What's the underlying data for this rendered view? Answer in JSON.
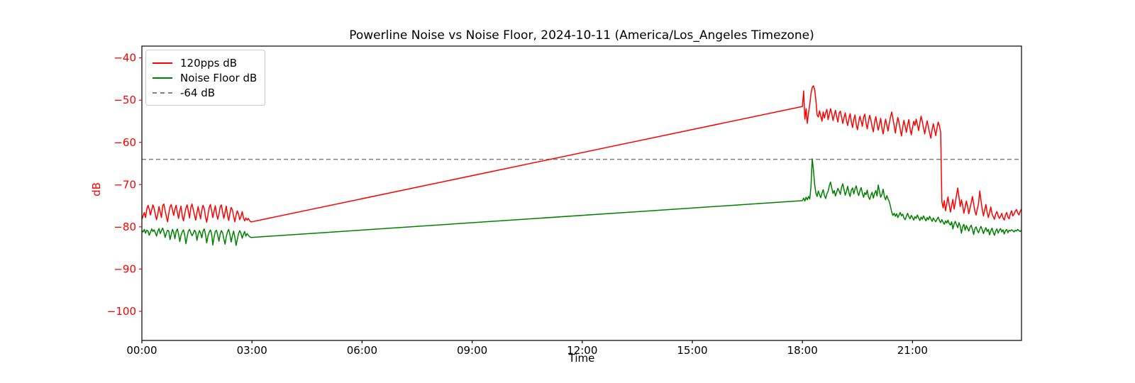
{
  "chart_data": {
    "type": "line",
    "title": "Powerline Noise vs Noise Floor, 2024-10-11 (America/Los_Angeles Timezone)",
    "xlabel": "Time",
    "ylabel": "dB",
    "date": "2024-10-11",
    "timezone": "America/Los_Angeles",
    "grid": false,
    "legend_position": "upper-left",
    "xlim_hours": [
      0,
      23.97
    ],
    "ylim": [
      -106.9,
      -37.2
    ],
    "x_axis_color": "#000000",
    "y_axis_color": "#ff0000",
    "x_ticks": [
      {
        "t": 0,
        "label": "00:00"
      },
      {
        "t": 3,
        "label": "03:00"
      },
      {
        "t": 6,
        "label": "06:00"
      },
      {
        "t": 9,
        "label": "09:00"
      },
      {
        "t": 12,
        "label": "12:00"
      },
      {
        "t": 15,
        "label": "15:00"
      },
      {
        "t": 18,
        "label": "18:00"
      },
      {
        "t": 21,
        "label": "21:00"
      }
    ],
    "y_ticks": [
      {
        "v": -40,
        "label": "−40"
      },
      {
        "v": -50,
        "label": "−50"
      },
      {
        "v": -60,
        "label": "−60"
      },
      {
        "v": -70,
        "label": "−70"
      },
      {
        "v": -80,
        "label": "−80"
      },
      {
        "v": -90,
        "label": "−90"
      },
      {
        "v": -100,
        "label": "−100"
      }
    ],
    "legend": {
      "entries": [
        {
          "label": "120pps dB",
          "color": "#ff0000",
          "dash": "solid"
        },
        {
          "label": "Noise Floor dB",
          "color": "#008000",
          "dash": "solid"
        },
        {
          "label": "-64 dB",
          "color": "#808080",
          "dash": "dashed"
        }
      ]
    },
    "reference_line": {
      "value": -64,
      "color": "#808080",
      "style": "dashed"
    },
    "series": [
      {
        "name": "120pps dB",
        "slug": "120pps-db",
        "color": "#ff0000",
        "segments": [
          {
            "t0": 0,
            "dt_min": 2,
            "values": [
              -78.2,
              -77.4,
              -76.6,
              -77.8,
              -75.9,
              -74.9,
              -75.8,
              -77.2,
              -76.0,
              -74.8,
              -75.6,
              -77.1,
              -78.3,
              -77.0,
              -75.2,
              -76.5,
              -77.8,
              -75.0,
              -74.6,
              -76.2,
              -77.5,
              -78.8,
              -76.9,
              -75.3,
              -74.7,
              -76.0,
              -77.3,
              -75.8,
              -74.9,
              -76.6,
              -78.0,
              -76.2,
              -75.1,
              -77.4,
              -78.6,
              -77.0,
              -75.6,
              -74.8,
              -76.3,
              -77.9,
              -75.4,
              -74.6,
              -75.9,
              -77.2,
              -78.4,
              -76.7,
              -75.2,
              -76.8,
              -78.1,
              -76.0,
              -74.9,
              -75.7,
              -77.6,
              -78.9,
              -77.2,
              -75.5,
              -74.7,
              -76.1,
              -77.8,
              -76.4,
              -75.0,
              -76.9,
              -78.2,
              -77.0,
              -75.3,
              -74.8,
              -76.5,
              -78.0,
              -76.6,
              -75.1,
              -77.2,
              -78.5,
              -76.8,
              -75.4,
              -76.0,
              -77.5,
              -78.8,
              -77.3,
              -76.2,
              -77.0,
              -78.3,
              -77.6,
              -76.4,
              -77.8,
              -78.6,
              -77.9,
              -78.4,
              -78.0,
              -78.5,
              -78.8
            ]
          },
          {
            "points": [
              [
                3.0,
                -78.8
              ],
              [
                18.0,
                -51.5
              ]
            ]
          },
          {
            "t0": 18,
            "dt_min": 2,
            "values": [
              -51.5,
              -47.8,
              -54.5,
              -52.0,
              -55.5,
              -53.0,
              -51.0,
              -48.5,
              -47.0,
              -46.6,
              -47.5,
              -50.0,
              -53.5,
              -54.0,
              -52.5,
              -53.8,
              -55.0,
              -52.8,
              -54.2,
              -53.0,
              -52.2,
              -54.6,
              -53.4,
              -52.0,
              -53.2,
              -54.8,
              -53.6,
              -52.4,
              -53.9,
              -55.2,
              -53.1,
              -52.6,
              -54.0,
              -55.5,
              -54.2,
              -53.0,
              -54.8,
              -56.0,
              -54.4,
              -53.2,
              -55.1,
              -56.5,
              -54.6,
              -53.5,
              -55.8,
              -57.0,
              -55.2,
              -53.8,
              -54.9,
              -56.2,
              -54.1,
              -53.3,
              -55.4,
              -56.8,
              -55.0,
              -53.6,
              -54.7,
              -56.3,
              -57.5,
              -55.3,
              -53.9,
              -55.6,
              -57.1,
              -55.8,
              -54.3,
              -56.6,
              -58.0,
              -56.1,
              -54.5,
              -55.9,
              -57.3,
              -55.5,
              -54.0,
              -52.8,
              -54.4,
              -56.0,
              -57.8,
              -55.7,
              -54.1,
              -55.3,
              -57.0,
              -58.5,
              -56.4,
              -54.8,
              -56.2,
              -57.6,
              -55.9,
              -54.6,
              -56.8,
              -58.2,
              -56.5,
              -55.0,
              -56.0,
              -54.5,
              -55.8,
              -57.2,
              -55.4,
              -53.8,
              -55.0,
              -56.6,
              -58.0,
              -56.2,
              -54.9,
              -56.4,
              -57.8,
              -59.0,
              -57.0,
              -55.6,
              -56.9,
              -58.4,
              -56.6,
              -55.2,
              -56.1,
              -57.5,
              -74.0,
              -75.5,
              -73.8,
              -76.2,
              -74.5,
              -72.9,
              -74.8,
              -76.5,
              -75.0,
              -73.5,
              -75.8,
              -74.2,
              -72.5,
              -70.8,
              -73.0,
              -75.2,
              -73.6,
              -74.9,
              -76.8,
              -75.4,
              -73.9,
              -75.1,
              -76.9,
              -75.6,
              -74.3,
              -72.8,
              -74.6,
              -76.3,
              -77.2,
              -75.8,
              -74.4,
              -71.5,
              -73.8,
              -75.9,
              -77.4,
              -76.0,
              -74.7,
              -76.5,
              -77.8,
              -76.6,
              -75.3,
              -76.9,
              -77.6,
              -78.2,
              -77.0,
              -76.4,
              -77.3,
              -78.0,
              -77.5,
              -76.8,
              -77.9,
              -78.4,
              -77.2,
              -76.6,
              -77.7,
              -78.1,
              -76.9,
              -76.2,
              -77.4,
              -77.0,
              -76.3,
              -75.9,
              -76.7,
              -77.2,
              -76.4,
              -75.8
            ]
          }
        ]
      },
      {
        "name": "Noise Floor dB",
        "slug": "noise-floor-db",
        "color": "#008000",
        "segments": [
          {
            "t0": 0,
            "dt_min": 2,
            "values": [
              -80.9,
              -81.2,
              -80.6,
              -81.5,
              -80.8,
              -81.0,
              -82.0,
              -81.3,
              -80.5,
              -81.1,
              -80.7,
              -81.4,
              -82.2,
              -81.0,
              -80.4,
              -81.6,
              -80.9,
              -80.3,
              -81.2,
              -82.5,
              -81.5,
              -80.8,
              -81.0,
              -83.0,
              -81.8,
              -80.6,
              -81.3,
              -82.8,
              -81.1,
              -80.5,
              -81.7,
              -83.5,
              -82.0,
              -81.2,
              -80.7,
              -81.9,
              -84.0,
              -82.4,
              -81.0,
              -80.6,
              -81.4,
              -82.1,
              -81.6,
              -80.8,
              -81.2,
              -83.2,
              -81.8,
              -80.9,
              -81.5,
              -82.6,
              -81.0,
              -80.5,
              -81.8,
              -83.8,
              -82.2,
              -81.3,
              -80.7,
              -81.6,
              -84.3,
              -82.5,
              -81.1,
              -80.8,
              -82.0,
              -83.4,
              -81.7,
              -80.9,
              -81.4,
              -82.9,
              -84.1,
              -82.3,
              -81.2,
              -80.6,
              -81.9,
              -83.6,
              -82.1,
              -81.0,
              -82.4,
              -84.4,
              -83.0,
              -81.6,
              -80.9,
              -81.5,
              -82.7,
              -81.8,
              -81.1,
              -82.2,
              -81.6,
              -82.0,
              -82.3,
              -82.5
            ]
          },
          {
            "points": [
              [
                3.0,
                -82.5
              ],
              [
                18.0,
                -73.8
              ]
            ]
          },
          {
            "t0": 18,
            "dt_min": 2,
            "values": [
              -73.8,
              -73.2,
              -73.9,
              -73.0,
              -73.6,
              -72.8,
              -73.4,
              -70.5,
              -63.9,
              -66.5,
              -70.0,
              -72.0,
              -72.8,
              -71.5,
              -72.4,
              -73.1,
              -72.0,
              -71.2,
              -72.6,
              -73.3,
              -72.2,
              -71.6,
              -70.2,
              -69.4,
              -70.8,
              -72.1,
              -71.4,
              -72.7,
              -71.8,
              -70.9,
              -71.5,
              -72.3,
              -70.6,
              -69.8,
              -71.2,
              -72.5,
              -71.6,
              -70.4,
              -71.9,
              -72.8,
              -71.3,
              -70.8,
              -72.2,
              -71.0,
              -70.3,
              -71.7,
              -72.6,
              -71.5,
              -70.7,
              -72.0,
              -73.0,
              -71.9,
              -72.4,
              -71.3,
              -72.9,
              -73.5,
              -72.5,
              -71.8,
              -73.2,
              -72.1,
              -71.4,
              -72.7,
              -70.1,
              -71.6,
              -73.0,
              -72.3,
              -71.1,
              -72.8,
              -73.6,
              -72.6,
              -73.4,
              -74.0,
              -75.2,
              -76.5,
              -77.3,
              -76.8,
              -77.5,
              -76.9,
              -77.8,
              -77.2,
              -76.6,
              -77.4,
              -77.0,
              -77.9,
              -78.3,
              -77.5,
              -76.8,
              -77.6,
              -78.1,
              -77.3,
              -77.8,
              -78.4,
              -77.6,
              -78.0,
              -77.2,
              -77.9,
              -78.5,
              -77.7,
              -78.2,
              -77.4,
              -78.0,
              -78.6,
              -77.8,
              -78.3,
              -77.5,
              -78.1,
              -78.7,
              -77.9,
              -78.4,
              -78.8,
              -78.2,
              -77.7,
              -78.5,
              -79.0,
              -78.3,
              -78.9,
              -79.4,
              -78.6,
              -79.1,
              -78.4,
              -79.2,
              -79.6,
              -78.8,
              -80.5,
              -79.3,
              -78.7,
              -79.5,
              -80.2,
              -79.0,
              -79.8,
              -81.5,
              -80.0,
              -79.4,
              -80.8,
              -79.7,
              -80.3,
              -81.0,
              -80.1,
              -79.6,
              -80.6,
              -81.8,
              -80.4,
              -80.0,
              -80.9,
              -81.4,
              -80.5,
              -79.9,
              -80.7,
              -81.6,
              -80.8,
              -80.2,
              -81.1,
              -80.6,
              -81.9,
              -80.9,
              -80.3,
              -81.3,
              -82.0,
              -81.0,
              -80.5,
              -81.5,
              -80.8,
              -80.4,
              -81.2,
              -80.7,
              -81.7,
              -80.9,
              -80.6,
              -81.4,
              -80.8,
              -81.0,
              -80.7,
              -80.9,
              -81.2,
              -80.8,
              -81.0,
              -80.6,
              -80.9,
              -81.1,
              -80.8
            ]
          }
        ]
      }
    ]
  }
}
